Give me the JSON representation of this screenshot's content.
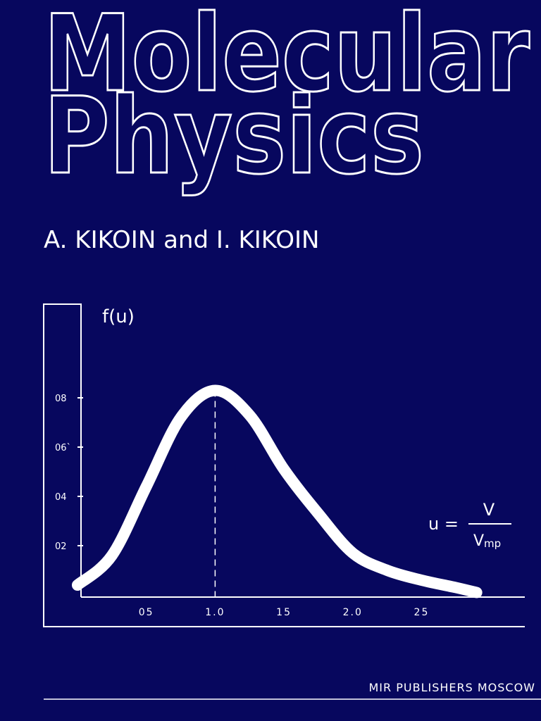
{
  "title": [
    "Molecular",
    "Physics"
  ],
  "authors": "A. KIKOIN and I. KIKOIN",
  "publisher": "MIR PUBLISHERS MOSCOW",
  "chart_data": {
    "type": "line",
    "y_label": "f(u)",
    "annotation": {
      "lhs": "u =",
      "numerator": "V",
      "denominator": "V",
      "denominator_sub": "mp"
    },
    "x": [
      0,
      0.25,
      0.5,
      0.75,
      1,
      1.25,
      1.5,
      1.75,
      2,
      2.25,
      2.5,
      2.75,
      2.9
    ],
    "y": [
      0.04,
      0.16,
      0.44,
      0.72,
      0.83,
      0.73,
      0.51,
      0.33,
      0.17,
      0.1,
      0.06,
      0.03,
      0.01
    ],
    "color": "#ffffff",
    "xlim": [
      0,
      3.25
    ],
    "ylim": [
      0,
      1.2
    ],
    "xticks": [
      {
        "value": 0.5,
        "label": "05"
      },
      {
        "value": 1,
        "label": "1.0"
      },
      {
        "value": 1.5,
        "label": "15"
      },
      {
        "value": 2,
        "label": "2.0"
      },
      {
        "value": 2.5,
        "label": "25"
      }
    ],
    "yticks": [
      {
        "value": 0.2,
        "label": "02"
      },
      {
        "value": 0.4,
        "label": "04"
      },
      {
        "value": 0.6,
        "label": "06`"
      },
      {
        "value": 0.8,
        "label": "08"
      }
    ]
  }
}
